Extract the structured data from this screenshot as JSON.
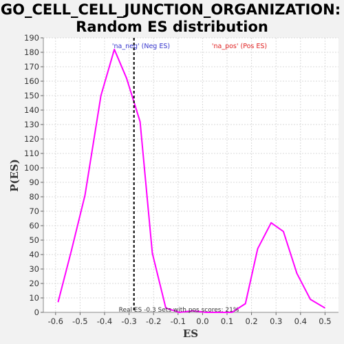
{
  "chart_data": {
    "type": "line",
    "title": [
      "GO_CELL_CELL_JUNCTION_ORGANIZATION:",
      "Random ES distribution"
    ],
    "xlabel": "ES",
    "ylabel": "P(ES)",
    "xlim": [
      -0.65,
      0.555
    ],
    "ylim": [
      0,
      190
    ],
    "x_ticks": [
      -0.6,
      -0.5,
      -0.4,
      -0.3,
      -0.2,
      -0.1,
      0.0,
      0.1,
      0.2,
      0.3,
      0.4,
      0.5
    ],
    "x_tick_labels": [
      "-0.6",
      "-0.5",
      "-0.4",
      "-0.3",
      "-0.2",
      "-0.1",
      "0.0",
      "0.1",
      "0.2",
      "0.3",
      "0.4",
      "0.5"
    ],
    "y_ticks": [
      0,
      10,
      20,
      30,
      40,
      50,
      60,
      70,
      80,
      90,
      100,
      110,
      120,
      130,
      140,
      150,
      160,
      170,
      180,
      190
    ],
    "grid": true,
    "series": [
      {
        "color": "#ff00ff",
        "x": [
          -0.59,
          -0.535,
          -0.48,
          -0.415,
          -0.36,
          -0.31,
          -0.255,
          -0.205,
          -0.15,
          -0.095,
          -0.04,
          0.015,
          0.065,
          0.12,
          0.175,
          0.225,
          0.28,
          0.33,
          0.385,
          0.44,
          0.5
        ],
        "y": [
          7,
          43,
          81,
          150,
          182,
          162,
          132,
          41,
          3,
          0,
          1,
          0,
          0,
          0,
          6,
          44,
          62,
          56,
          27,
          9,
          3
        ]
      }
    ],
    "real_es": -0.28,
    "annotations": {
      "neg_label": "'na_neg' (Neg ES)",
      "pos_label": "'na_pos' (Pos ES)",
      "neg_color": "#3333cc",
      "pos_color": "#e02020",
      "footer": "Real ES -0.3    Sets with pos scores: 21%"
    }
  }
}
